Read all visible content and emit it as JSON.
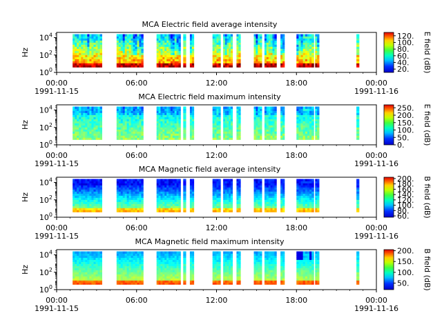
{
  "figure": {
    "bg": "#ffffff"
  },
  "time_axis": {
    "ticks": [
      {
        "t": 0,
        "label": "00:00",
        "date": "1991-11-15"
      },
      {
        "t": 6,
        "label": "06:00"
      },
      {
        "t": 12,
        "label": "12:00"
      },
      {
        "t": 18,
        "label": "18:00"
      },
      {
        "t": 24,
        "label": "00:00",
        "date": "1991-11-16"
      }
    ],
    "range_hours": [
      0,
      24
    ]
  },
  "segments_hours": [
    [
      1.2,
      3.4
    ],
    [
      4.5,
      6.5
    ],
    [
      7.5,
      9.3
    ],
    [
      9.5,
      9.7
    ],
    [
      10.0,
      10.3
    ],
    [
      11.7,
      12.3
    ],
    [
      12.5,
      13.2
    ],
    [
      13.5,
      13.8
    ],
    [
      14.8,
      15.4
    ],
    [
      15.6,
      16.5
    ],
    [
      16.8,
      17.1
    ],
    [
      18.0,
      19.3
    ],
    [
      19.4,
      19.7
    ],
    [
      22.5,
      22.7
    ]
  ],
  "chart_data": [
    {
      "type": "heatmap",
      "title": "MCA  Electric field average intensity",
      "ylabel": "Hz",
      "yscale": "log",
      "yticks": [
        {
          "v": 0,
          "label": "10"
        },
        {
          "v": 2,
          "label": "10"
        },
        {
          "v": 4,
          "label": "10"
        }
      ],
      "ylim_log10": [
        0,
        4.6
      ],
      "data_ylim_log10": [
        0.6,
        4.4
      ],
      "colorbar": {
        "label": "E field (dB)",
        "ticks": [
          "20.",
          "40.",
          "60.",
          "80.",
          "100.",
          "120."
        ],
        "tick_values": [
          20,
          40,
          60,
          80,
          100,
          120
        ],
        "range": [
          10,
          130
        ]
      },
      "pattern": "e_avg"
    },
    {
      "type": "heatmap",
      "title": "MCA  Electric field maximum intensity",
      "ylabel": "Hz",
      "yscale": "log",
      "yticks": [
        {
          "v": 0,
          "label": "10"
        },
        {
          "v": 2,
          "label": "10"
        },
        {
          "v": 4,
          "label": "10"
        }
      ],
      "ylim_log10": [
        0,
        4.6
      ],
      "data_ylim_log10": [
        0.6,
        4.4
      ],
      "colorbar": {
        "label": "E field (dB)",
        "ticks": [
          "0.",
          "50.",
          "100.",
          "150.",
          "200.",
          "250."
        ],
        "tick_values": [
          0,
          50,
          100,
          150,
          200,
          250
        ],
        "range": [
          0,
          270
        ]
      },
      "pattern": "e_max"
    },
    {
      "type": "heatmap",
      "title": "MCA  Magnetic field average intensity",
      "ylabel": "Hz",
      "yscale": "log",
      "yticks": [
        {
          "v": 0,
          "label": "10"
        },
        {
          "v": 2,
          "label": "10"
        },
        {
          "v": 4,
          "label": "10"
        }
      ],
      "ylim_log10": [
        0,
        4.6
      ],
      "data_ylim_log10": [
        0.6,
        4.4
      ],
      "colorbar": {
        "label": "B field (dB)",
        "ticks": [
          "60.",
          "80.",
          "100.",
          "120.",
          "140.",
          "160.",
          "180.",
          "200."
        ],
        "tick_values": [
          60,
          80,
          100,
          120,
          140,
          160,
          180,
          200
        ],
        "range": [
          55,
          205
        ]
      },
      "pattern": "b_avg"
    },
    {
      "type": "heatmap",
      "title": "MCA  Magnetic field maximum intensity",
      "ylabel": "Hz",
      "yscale": "log",
      "yticks": [
        {
          "v": 0,
          "label": "10"
        },
        {
          "v": 2,
          "label": "10"
        },
        {
          "v": 4,
          "label": "10"
        }
      ],
      "ylim_log10": [
        0,
        4.6
      ],
      "data_ylim_log10": [
        0.6,
        4.4
      ],
      "colorbar": {
        "label": "B field (dB)",
        "ticks": [
          "50.",
          "100.",
          "150.",
          "200."
        ],
        "tick_values": [
          50,
          100,
          150,
          200
        ],
        "range": [
          20,
          205
        ]
      },
      "pattern": "b_max"
    }
  ]
}
